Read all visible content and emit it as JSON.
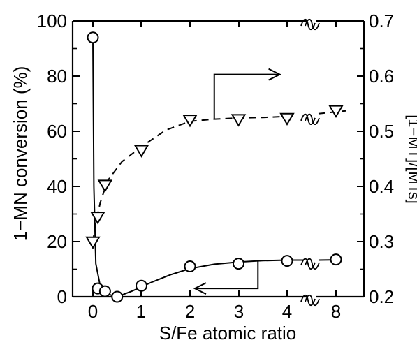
{
  "chart_data": {
    "type": "scatter",
    "title": "",
    "xlabel": "S/Fe atomic ratio",
    "ylabel_left": "1−MN conversion (%)",
    "ylabel_right": "[1−MT]/[MTs]",
    "x_ticks": [
      "0",
      "1",
      "2",
      "3",
      "4",
      "8"
    ],
    "x_axis_break": "between 4 and 8",
    "ylim_left": [
      0,
      100
    ],
    "yticks_left": [
      "0",
      "20",
      "40",
      "60",
      "80",
      "100"
    ],
    "ylim_right": [
      0.2,
      0.7
    ],
    "yticks_right": [
      "0.2",
      "0.3",
      "0.4",
      "0.5",
      "0.6",
      "0.7"
    ],
    "grid": false,
    "series": [
      {
        "marker": "circle",
        "axis": "left",
        "line": "solid",
        "x": [
          0,
          0.1,
          0.25,
          0.5,
          1,
          2,
          3,
          4,
          8
        ],
        "y": [
          94,
          3,
          2,
          0,
          4,
          11,
          12,
          13,
          13.5
        ]
      },
      {
        "marker": "triangle-down",
        "axis": "right",
        "line": "dashed",
        "x": [
          0,
          0.1,
          0.25,
          1,
          2,
          3,
          4,
          8
        ],
        "y": [
          0.3,
          0.345,
          0.403,
          0.466,
          0.521,
          0.522,
          0.524,
          0.538
        ]
      }
    ],
    "annotations": [
      "arrow pointing right toward right axis",
      "arrow pointing left toward left axis"
    ]
  }
}
